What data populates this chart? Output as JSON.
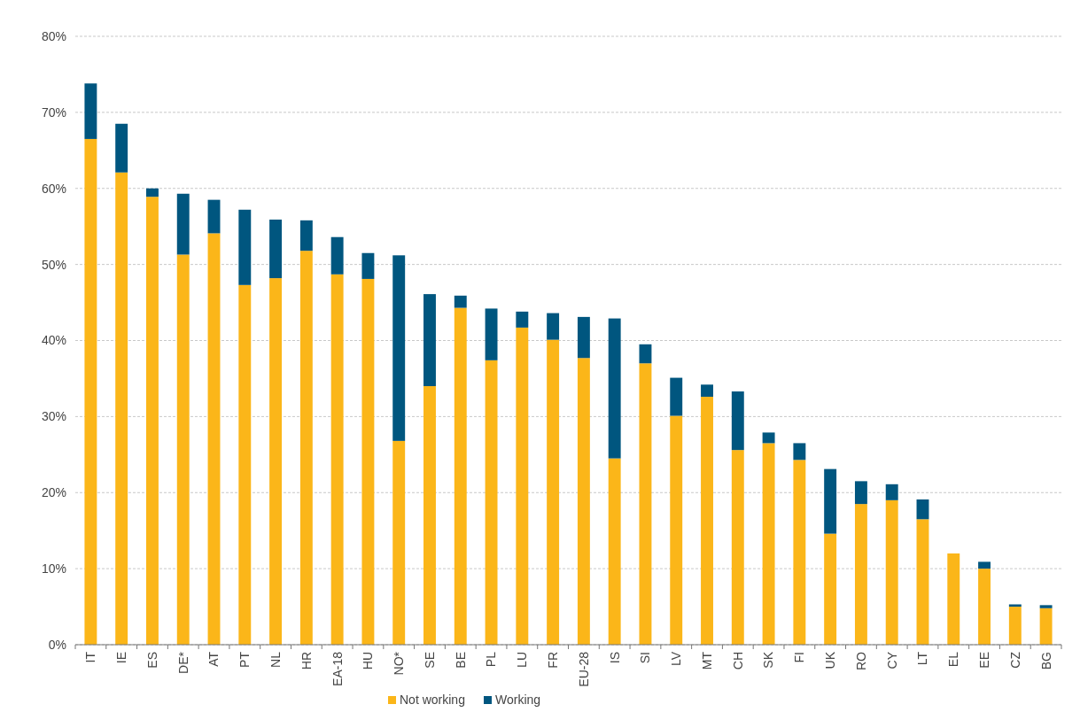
{
  "chart_data": {
    "type": "bar",
    "stacked": true,
    "categories": [
      "IT",
      "IE",
      "ES",
      "DE*",
      "AT",
      "PT",
      "NL",
      "HR",
      "EA-18",
      "HU",
      "NO*",
      "SE",
      "BE",
      "PL",
      "LU",
      "FR",
      "EU-28",
      "IS",
      "SI",
      "LV",
      "MT",
      "CH",
      "SK",
      "FI",
      "UK",
      "RO",
      "CY",
      "LT",
      "EL",
      "EE",
      "CZ",
      "BG"
    ],
    "series": [
      {
        "name": "Not working",
        "color": "#fbb619",
        "values": [
          66.5,
          62.1,
          58.9,
          51.3,
          54.1,
          47.3,
          48.2,
          51.8,
          48.7,
          48.1,
          26.8,
          34.0,
          44.3,
          37.4,
          41.7,
          40.1,
          37.7,
          24.5,
          37.0,
          30.1,
          32.6,
          25.6,
          26.5,
          24.3,
          14.6,
          18.5,
          19.0,
          16.5,
          12.0,
          10.0,
          5.0,
          4.8
        ]
      },
      {
        "name": "Working",
        "color": "#00567f",
        "values": [
          7.3,
          6.4,
          1.1,
          8.0,
          4.4,
          9.9,
          7.7,
          4.0,
          4.9,
          3.4,
          24.4,
          12.1,
          1.6,
          6.8,
          2.1,
          3.5,
          5.4,
          18.4,
          2.5,
          5.0,
          1.6,
          7.7,
          1.4,
          2.2,
          8.5,
          3.0,
          2.1,
          2.6,
          0,
          0.9,
          0.3,
          0.4
        ]
      }
    ],
    "ylim": [
      0,
      80
    ],
    "yticks": [
      {
        "value": 0,
        "label": "0%"
      },
      {
        "value": 10,
        "label": "10%"
      },
      {
        "value": 20,
        "label": "20%"
      },
      {
        "value": 30,
        "label": "30%"
      },
      {
        "value": 40,
        "label": "40%"
      },
      {
        "value": 50,
        "label": "50%"
      },
      {
        "value": 60,
        "label": "60%"
      },
      {
        "value": 70,
        "label": "70%"
      },
      {
        "value": 80,
        "label": "80%"
      }
    ],
    "grid": "y",
    "legend": "bottom"
  }
}
